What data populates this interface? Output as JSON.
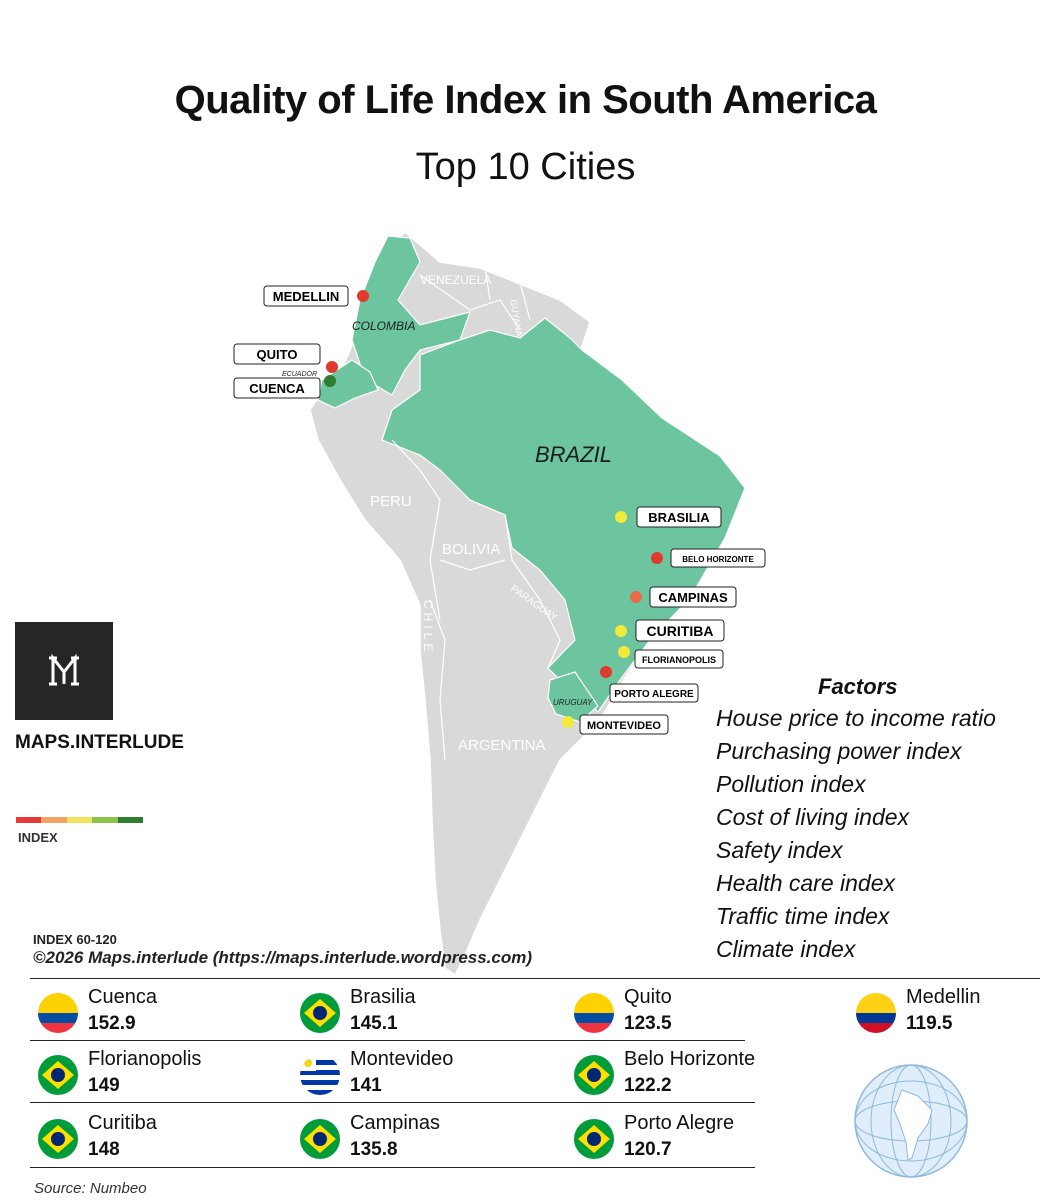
{
  "title": "Quality of Life Index in South America",
  "subtitle": "Top 10 Cities",
  "map": {
    "countries": [
      "COLOMBIA",
      "VENEZUELA",
      "GUYANA",
      "ECUADOR",
      "BRAZIL",
      "PERU",
      "BOLIVIA",
      "CHILE",
      "PARAGUAY",
      "URUGUAY",
      "ARGENTINA"
    ],
    "cities": [
      {
        "name": "MEDELLIN",
        "color": "#e0392f"
      },
      {
        "name": "QUITO",
        "color": "#e0392f"
      },
      {
        "name": "CUENCA",
        "color": "#2e7d32"
      },
      {
        "name": "BRASILIA",
        "color": "#f2ea3a"
      },
      {
        "name": "BELO HORIZONTE",
        "color": "#e0392f"
      },
      {
        "name": "CAMPINAS",
        "color": "#e86a4a"
      },
      {
        "name": "CURITIBA",
        "color": "#f2ea3a"
      },
      {
        "name": "FLORIANOPOLIS",
        "color": "#f2ea3a"
      },
      {
        "name": "PORTO ALEGRE",
        "color": "#e0392f"
      },
      {
        "name": "MONTEVIDEO",
        "color": "#f2ea3a"
      }
    ],
    "highlight_color": "#6cc59e",
    "base_color": "#d9d9d9"
  },
  "brand": {
    "name": "MAPS.INTERLUDE",
    "logo_icon": "m-logo-icon"
  },
  "legend": {
    "label": "INDEX",
    "colors": [
      "#e53935",
      "#f4a261",
      "#f2e35a",
      "#8bc34a",
      "#2e7d32"
    ]
  },
  "range": "INDEX 60-120",
  "copyright": "©2026 Maps.interlude (https://maps.interlude.wordpress.com)",
  "factors": {
    "title": "Factors",
    "items": [
      "House price to income ratio",
      "Purchasing power index",
      "Pollution index",
      "Cost of living index",
      "Safety index",
      "Health care index",
      "Traffic time index",
      "Climate index"
    ]
  },
  "rankings": [
    {
      "city": "Cuenca",
      "value": "152.9",
      "flag": "ecuador"
    },
    {
      "city": "Brasilia",
      "value": "145.1",
      "flag": "brazil"
    },
    {
      "city": "Quito",
      "value": "123.5",
      "flag": "ecuador"
    },
    {
      "city": "Medellin",
      "value": "119.5",
      "flag": "colombia"
    },
    {
      "city": "Florianopolis",
      "value": "149",
      "flag": "brazil"
    },
    {
      "city": "Montevideo",
      "value": "141",
      "flag": "uruguay"
    },
    {
      "city": "Belo Horizonte",
      "value": "122.2",
      "flag": "brazil"
    },
    {
      "city": "Curitiba",
      "value": "148",
      "flag": "brazil"
    },
    {
      "city": "Campinas",
      "value": "135.8",
      "flag": "brazil"
    },
    {
      "city": "Porto Alegre",
      "value": "120.7",
      "flag": "brazil"
    }
  ],
  "globe_icon": "globe-south-america-icon",
  "source": "Source: Numbeo"
}
